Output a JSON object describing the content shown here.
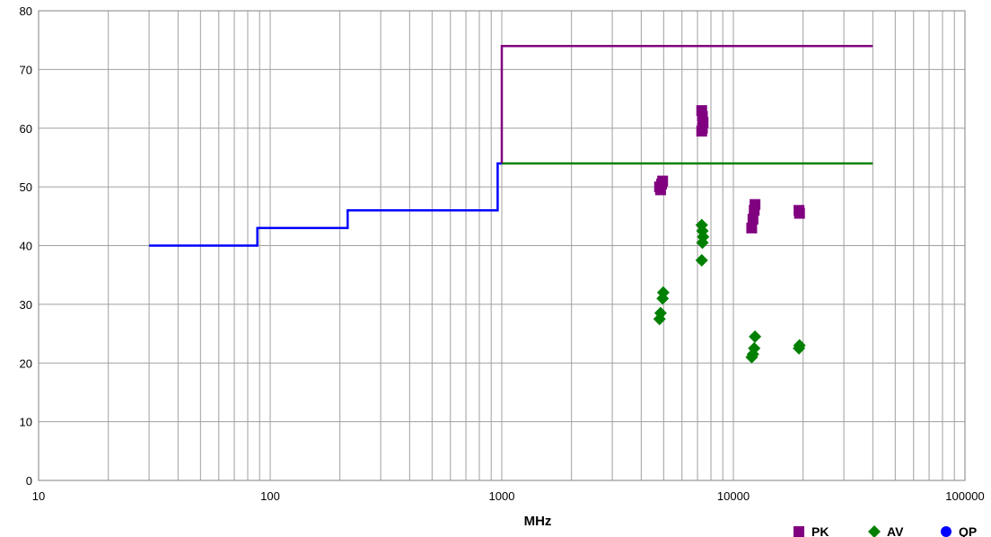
{
  "chart_data": {
    "type": "scatter",
    "xlabel": "MHz",
    "ylabel": "",
    "x_scale": "log",
    "xlim": [
      10,
      100000
    ],
    "ylim": [
      0,
      80
    ],
    "grid": true,
    "legend_position": "bottom-right",
    "x_ticks": [
      "10",
      "100",
      "1000",
      "10000",
      "100000"
    ],
    "y_ticks": [
      "0",
      "10",
      "20",
      "30",
      "40",
      "50",
      "60",
      "70",
      "80"
    ],
    "limit_lines": [
      {
        "color": "#0000ff",
        "points": [
          [
            30,
            40
          ],
          [
            88,
            40
          ],
          [
            88,
            43
          ],
          [
            216,
            43
          ],
          [
            216,
            46
          ],
          [
            960,
            46
          ],
          [
            960,
            54
          ],
          [
            1000,
            54
          ]
        ]
      },
      {
        "color": "#008000",
        "points": [
          [
            1000,
            54
          ],
          [
            40000,
            54
          ]
        ]
      },
      {
        "color": "#800080",
        "points": [
          [
            1000,
            54
          ],
          [
            1000,
            74
          ],
          [
            40000,
            74
          ]
        ]
      }
    ],
    "series": [
      {
        "name": "PK",
        "marker": "square",
        "color": "#800080",
        "points": [
          [
            4800,
            50
          ],
          [
            4850,
            49.5
          ],
          [
            4900,
            50.5
          ],
          [
            4950,
            51
          ],
          [
            7300,
            63
          ],
          [
            7350,
            62
          ],
          [
            7400,
            61
          ],
          [
            7350,
            60
          ],
          [
            7300,
            59.5
          ],
          [
            12000,
            43
          ],
          [
            12150,
            44.5
          ],
          [
            12300,
            46
          ],
          [
            12400,
            47
          ],
          [
            19200,
            46
          ],
          [
            19300,
            45.5
          ]
        ]
      },
      {
        "name": "AV",
        "marker": "diamond",
        "color": "#008000",
        "points": [
          [
            4800,
            27.5
          ],
          [
            4850,
            28.5
          ],
          [
            4950,
            31
          ],
          [
            4980,
            32
          ],
          [
            7300,
            37.5
          ],
          [
            7350,
            40.5
          ],
          [
            7400,
            41.5
          ],
          [
            7350,
            42.5
          ],
          [
            7300,
            43.5
          ],
          [
            12000,
            21
          ],
          [
            12150,
            21.5
          ],
          [
            12300,
            22.5
          ],
          [
            12400,
            24.5
          ],
          [
            19200,
            22.5
          ],
          [
            19300,
            23
          ]
        ]
      },
      {
        "name": "QP",
        "marker": "circle",
        "color": "#0000ff",
        "points": []
      }
    ]
  }
}
